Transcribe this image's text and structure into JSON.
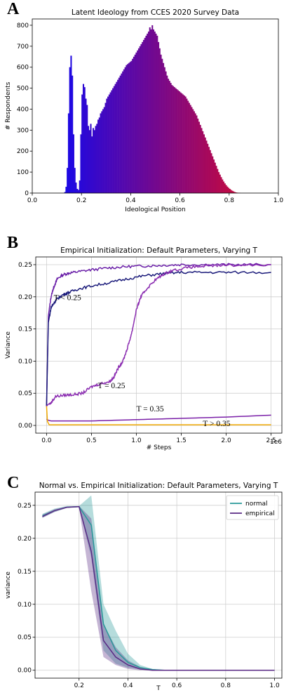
{
  "panels": {
    "a": "A",
    "b": "B",
    "c": "C"
  },
  "chart_data": [
    {
      "type": "bar",
      "title": "Latent Ideology from CCES 2020 Survey Data",
      "xlabel": "Ideological Position",
      "ylabel": "# Respondents",
      "xlim": [
        0.0,
        1.0
      ],
      "ylim": [
        0,
        830
      ],
      "xticks": [
        "0.0",
        "0.2",
        "0.4",
        "0.6",
        "0.8",
        "1.0"
      ],
      "yticks": [
        "0",
        "100",
        "200",
        "300",
        "400",
        "500",
        "600",
        "700",
        "800"
      ],
      "color_low": "#1a08e6",
      "color_high": "#e60a1e",
      "bin_width": 0.005,
      "bin_start": 0.13,
      "values": [
        5,
        30,
        120,
        380,
        600,
        655,
        560,
        280,
        120,
        50,
        20,
        15,
        60,
        280,
        470,
        520,
        505,
        450,
        420,
        320,
        300,
        330,
        270,
        310,
        300,
        320,
        330,
        350,
        360,
        380,
        390,
        400,
        410,
        430,
        450,
        460,
        470,
        480,
        490,
        500,
        510,
        520,
        530,
        540,
        550,
        560,
        570,
        580,
        590,
        600,
        610,
        615,
        620,
        625,
        630,
        640,
        650,
        660,
        670,
        680,
        690,
        700,
        710,
        720,
        730,
        740,
        750,
        760,
        770,
        790,
        780,
        800,
        780,
        770,
        760,
        750,
        720,
        690,
        660,
        640,
        620,
        600,
        580,
        560,
        545,
        535,
        525,
        515,
        510,
        505,
        500,
        495,
        490,
        485,
        480,
        475,
        470,
        465,
        460,
        450,
        440,
        430,
        420,
        410,
        400,
        390,
        380,
        370,
        355,
        340,
        325,
        310,
        295,
        280,
        265,
        250,
        235,
        220,
        205,
        190,
        175,
        160,
        145,
        130,
        115,
        100,
        88,
        76,
        65,
        55,
        46,
        38,
        31,
        25,
        20,
        15,
        11,
        8,
        5,
        3,
        2,
        1,
        1,
        0
      ]
    },
    {
      "type": "line",
      "title": "Empirical Initialization: Default Parameters, Varying T",
      "xlabel": "# Steps",
      "ylabel": "Variance",
      "x_multiplier": "1e6",
      "xlim": [
        -0.12,
        2.62
      ],
      "ylim": [
        -0.012,
        0.262
      ],
      "xticks": [
        "0.0",
        "0.5",
        "1.0",
        "1.5",
        "2.0",
        "2.5"
      ],
      "yticks": [
        "0.00",
        "0.05",
        "0.10",
        "0.15",
        "0.20",
        "0.25"
      ],
      "grid": true,
      "series": [
        {
          "label": "T < 0.25",
          "color": "#6a1fa8",
          "x": [
            0,
            0.02,
            0.05,
            0.08,
            0.12,
            0.18,
            0.25,
            0.35,
            0.5,
            0.7,
            0.9,
            1.1,
            1.3,
            1.5,
            1.8,
            2.1,
            2.5
          ],
          "y": [
            0.03,
            0.17,
            0.2,
            0.215,
            0.228,
            0.234,
            0.237,
            0.239,
            0.242,
            0.245,
            0.247,
            0.248,
            0.249,
            0.25,
            0.25,
            0.25,
            0.25
          ]
        },
        {
          "label": "T < 0.25",
          "color": "#1a1a7a",
          "x": [
            0,
            0.02,
            0.05,
            0.08,
            0.12,
            0.18,
            0.25,
            0.35,
            0.5,
            0.7,
            0.9,
            1.1,
            1.3,
            1.5,
            1.8,
            2.1,
            2.5
          ],
          "y": [
            0.03,
            0.16,
            0.183,
            0.19,
            0.197,
            0.203,
            0.207,
            0.212,
            0.217,
            0.222,
            0.228,
            0.233,
            0.236,
            0.238,
            0.238,
            0.238,
            0.238
          ]
        },
        {
          "label": "T = 0.25",
          "color": "#8a2bb0",
          "x": [
            0,
            0.02,
            0.05,
            0.1,
            0.2,
            0.3,
            0.4,
            0.5,
            0.6,
            0.7,
            0.75,
            0.8,
            0.85,
            0.9,
            0.95,
            1.0,
            1.05,
            1.1,
            1.2,
            1.3,
            1.4,
            1.6,
            1.8,
            2.0,
            2.5
          ],
          "y": [
            0.03,
            0.033,
            0.035,
            0.045,
            0.047,
            0.048,
            0.05,
            0.06,
            0.065,
            0.068,
            0.075,
            0.09,
            0.1,
            0.12,
            0.145,
            0.18,
            0.2,
            0.21,
            0.225,
            0.235,
            0.241,
            0.246,
            0.248,
            0.249,
            0.25
          ]
        },
        {
          "label": "T = 0.35",
          "color": "#7a1fa8",
          "x": [
            0,
            0.02,
            0.05,
            0.5,
            1.0,
            1.5,
            2.0,
            2.5
          ],
          "y": [
            0.01,
            0.008,
            0.007,
            0.007,
            0.009,
            0.011,
            0.013,
            0.016
          ]
        },
        {
          "label": "T > 0.35",
          "color": "#f0a800",
          "x": [
            0,
            0.01,
            0.03,
            2.5
          ],
          "y": [
            0.03,
            0.006,
            0.001,
            0.001
          ]
        }
      ],
      "annotations": [
        "T < 0.25",
        "T = 0.25",
        "T = 0.35",
        "T > 0.35"
      ]
    },
    {
      "type": "line",
      "title": "Normal vs. Empirical Initialization: Default Parameters, Varying T",
      "xlabel": "T",
      "ylabel": "variance",
      "xlim": [
        0.02,
        1.03
      ],
      "ylim": [
        -0.012,
        0.27
      ],
      "xticks": [
        "0.2",
        "0.4",
        "0.6",
        "0.8",
        "1.0"
      ],
      "yticks": [
        "0.00",
        "0.05",
        "0.10",
        "0.15",
        "0.20",
        "0.25"
      ],
      "grid": true,
      "legend": "top-right",
      "x": [
        0.05,
        0.1,
        0.15,
        0.2,
        0.25,
        0.3,
        0.35,
        0.4,
        0.45,
        0.5,
        0.55,
        0.6,
        0.7,
        0.8,
        0.9,
        1.0
      ],
      "series": [
        {
          "name": "normal",
          "color": "#2a9a9a",
          "values": [
            0.234,
            0.242,
            0.247,
            0.248,
            0.22,
            0.07,
            0.03,
            0.012,
            0.004,
            0.001,
            0,
            0,
            0,
            0,
            0,
            0
          ],
          "lower": [
            0.231,
            0.24,
            0.246,
            0.247,
            0.17,
            0.03,
            0.01,
            0.004,
            0.001,
            0,
            0,
            0,
            0,
            0,
            0,
            0
          ],
          "upper": [
            0.237,
            0.245,
            0.249,
            0.249,
            0.265,
            0.1,
            0.06,
            0.025,
            0.008,
            0.002,
            0,
            0,
            0,
            0,
            0,
            0
          ]
        },
        {
          "name": "empirical",
          "color": "#5a2a85",
          "values": [
            0.233,
            0.242,
            0.247,
            0.248,
            0.18,
            0.045,
            0.02,
            0.008,
            0.002,
            0,
            0,
            0,
            0,
            0,
            0,
            0
          ],
          "lower": [
            0.231,
            0.24,
            0.246,
            0.247,
            0.12,
            0.02,
            0.008,
            0.002,
            0,
            0,
            0,
            0,
            0,
            0,
            0,
            0
          ],
          "upper": [
            0.236,
            0.244,
            0.248,
            0.249,
            0.23,
            0.07,
            0.035,
            0.015,
            0.005,
            0.001,
            0,
            0,
            0,
            0,
            0,
            0
          ]
        }
      ]
    }
  ]
}
